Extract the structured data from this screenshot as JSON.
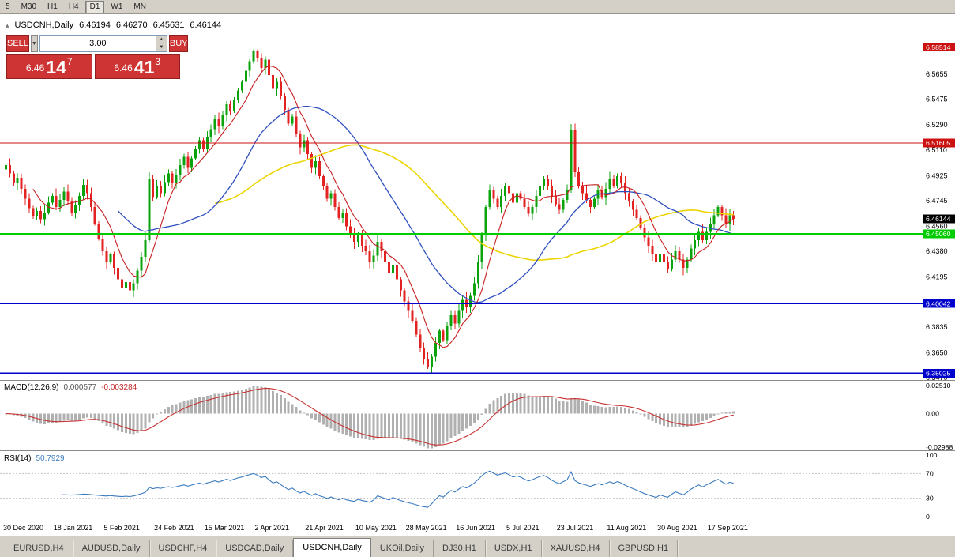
{
  "toolbar": {
    "timeframes": [
      {
        "label": "5",
        "active": false
      },
      {
        "label": "M30",
        "active": false
      },
      {
        "label": "H1",
        "active": false
      },
      {
        "label": "H4",
        "active": false
      },
      {
        "label": "D1",
        "active": true
      },
      {
        "label": "W1",
        "active": false
      },
      {
        "label": "MN",
        "active": false
      }
    ]
  },
  "chart": {
    "collapse_icon": "▴",
    "symbol": "USDCNH,Daily",
    "o": "6.46194",
    "h": "6.46270",
    "l": "6.45631",
    "c": "6.46144"
  },
  "trade": {
    "sell_label": "SELL",
    "buy_label": "BUY",
    "lot": "3.00",
    "dropdown_icon": "▼",
    "spin_up_icon": "▲",
    "spin_down_icon": "▼",
    "sell": {
      "prefix": "6.46",
      "big": "14",
      "sup": "7"
    },
    "buy": {
      "prefix": "6.46",
      "big": "41",
      "sup": "3"
    }
  },
  "indicators": {
    "macd": {
      "name": "MACD(12,26,9)",
      "v1": "0.000577",
      "v2": "-0.003284",
      "ticks": [
        "0.02510",
        "0.00",
        "-0.02988"
      ],
      "tick_values": [
        0.0251,
        0.0,
        -0.02988
      ]
    },
    "rsi": {
      "name": "RSI(14)",
      "value": "50.7929",
      "ticks": [
        "100",
        "70",
        "30",
        "0"
      ],
      "tick_values": [
        100,
        70,
        30,
        0
      ],
      "levels": [
        70,
        30
      ]
    }
  },
  "tabs": [
    {
      "label": "EURUSD,H4",
      "active": false
    },
    {
      "label": "AUDUSD,Daily",
      "active": false
    },
    {
      "label": "USDCHF,H4",
      "active": false
    },
    {
      "label": "USDCAD,Daily",
      "active": false
    },
    {
      "label": "USDCNH,Daily",
      "active": true
    },
    {
      "label": "UKOil,Daily",
      "active": false
    },
    {
      "label": "DJ30,H1",
      "active": false
    },
    {
      "label": "USDX,H1",
      "active": false
    },
    {
      "label": "XAUUSD,H4",
      "active": false
    },
    {
      "label": "GBPUSD,H1",
      "active": false
    }
  ],
  "colors": {
    "up_candle": "#0ba30b",
    "down_candle": "#e32222",
    "ma_fast": "#c81f1f",
    "ma_mid": "#3050c0",
    "ma_slow": "#ecd400",
    "macd_hist": "#b0b0b0",
    "macd_signal": "#c83232",
    "rsi_line": "#3b7bbf",
    "level_red": "#cc1111",
    "level_green": "#00ca00",
    "level_blue": "#0000cc",
    "last_price_bg": "#000000",
    "trade_red": "#cf3434"
  },
  "chart_data": {
    "type": "candlestick",
    "symbol": "USDCNH",
    "timeframe": "Daily",
    "last_price": 6.46144,
    "price_axis_ticks": [
      "6.5855",
      "6.5655",
      "6.5475",
      "6.5290",
      "6.5110",
      "6.4925",
      "6.4745",
      "6.4560",
      "6.4380",
      "6.4195",
      "6.4015",
      "6.3835",
      "6.3650",
      "6.3470"
    ],
    "levels": [
      {
        "price": 6.58514,
        "label": "6.58514",
        "color": "#cc1111",
        "width": 1.3
      },
      {
        "price": 6.51605,
        "label": "6.51605",
        "color": "#cc1111",
        "width": 1.3
      },
      {
        "price": 6.4506,
        "label": "6.45060",
        "color": "#00ca00",
        "width": 2
      },
      {
        "price": 6.40042,
        "label": "6.40042",
        "color": "#0000cc",
        "width": 1.6
      },
      {
        "price": 6.35025,
        "label": "6.35025",
        "color": "#0000cc",
        "width": 1.6
      }
    ],
    "dates": [
      "30 Dec 2020",
      "18 Jan 2021",
      "5 Feb 2021",
      "24 Feb 2021",
      "15 Mar 2021",
      "2 Apr 2021",
      "21 Apr 2021",
      "10 May 2021",
      "28 May 2021",
      "16 Jun 2021",
      "5 Jul 2021",
      "23 Jul 2021",
      "11 Aug 2021",
      "30 Aug 2021",
      "17 Sep 2021"
    ],
    "closes": [
      6.5,
      6.494,
      6.487,
      6.491,
      6.483,
      6.476,
      6.469,
      6.463,
      6.467,
      6.461,
      6.466,
      6.473,
      6.478,
      6.47,
      6.475,
      6.481,
      6.474,
      6.466,
      6.471,
      6.478,
      6.486,
      6.48,
      6.47,
      6.458,
      6.447,
      6.438,
      6.43,
      6.436,
      6.426,
      6.418,
      6.412,
      6.416,
      6.41,
      6.415,
      6.424,
      6.434,
      6.446,
      6.49,
      6.477,
      6.485,
      6.48,
      6.488,
      6.494,
      6.487,
      6.493,
      6.5,
      6.506,
      6.498,
      6.505,
      6.512,
      6.518,
      6.512,
      6.52,
      6.526,
      6.533,
      6.528,
      6.536,
      6.544,
      6.539,
      6.547,
      6.554,
      6.56,
      6.568,
      6.575,
      6.582,
      6.577,
      6.57,
      6.576,
      6.565,
      6.555,
      6.56,
      6.55,
      6.54,
      6.53,
      6.535,
      6.523,
      6.513,
      6.518,
      6.508,
      6.498,
      6.503,
      6.492,
      6.485,
      6.476,
      6.48,
      6.47,
      6.462,
      6.466,
      6.456,
      6.45,
      6.445,
      6.45,
      6.442,
      6.438,
      6.43,
      6.435,
      6.445,
      6.438,
      6.43,
      6.422,
      6.428,
      6.418,
      6.41,
      6.402,
      6.395,
      6.388,
      6.378,
      6.368,
      6.36,
      6.355,
      6.362,
      6.372,
      6.381,
      6.374,
      6.384,
      6.392,
      6.386,
      6.395,
      6.403,
      6.398,
      6.406,
      6.415,
      6.43,
      6.45,
      6.47,
      6.482,
      6.476,
      6.47,
      6.478,
      6.485,
      6.48,
      6.473,
      6.48,
      6.476,
      6.47,
      6.465,
      6.47,
      6.478,
      6.485,
      6.49,
      6.485,
      6.478,
      6.472,
      6.468,
      6.475,
      6.482,
      6.525,
      6.495,
      6.485,
      6.48,
      6.475,
      6.47,
      6.476,
      6.482,
      6.477,
      6.483,
      6.49,
      6.485,
      6.492,
      6.487,
      6.48,
      6.474,
      6.468,
      6.462,
      6.455,
      6.448,
      6.442,
      6.436,
      6.43,
      6.436,
      6.43,
      6.425,
      6.432,
      6.438,
      6.432,
      6.426,
      6.432,
      6.44,
      6.446,
      6.452,
      6.446,
      6.452,
      6.458,
      6.464,
      6.47,
      6.464,
      6.458,
      6.464,
      6.46144
    ]
  }
}
